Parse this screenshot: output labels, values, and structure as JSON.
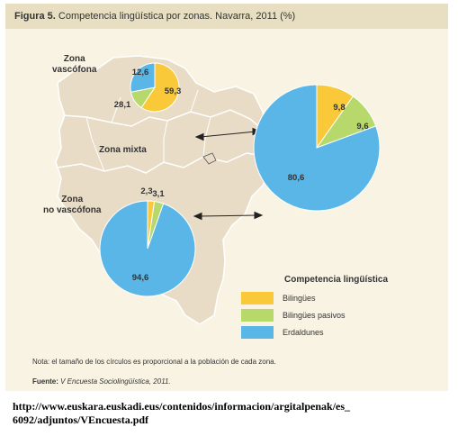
{
  "figure": {
    "title_prefix": "Figura 5.",
    "title_text": "Competencia lingüística por zonas. Navarra, 2011 (%)"
  },
  "zones": {
    "vascofona": [
      "Zona",
      "vascófona"
    ],
    "mixta": [
      "Zona mixta"
    ],
    "no_vascofona": [
      "Zona",
      "no vascófona"
    ]
  },
  "chart_data": {
    "type": "pie",
    "title": "Competencia lingüística por zonas. Navarra, 2011 (%)",
    "legend_title": "Competencia lingüística",
    "legend_position": "bottom-right",
    "categories": [
      "Bilingües",
      "Bilingües pasivos",
      "Erdaldunes"
    ],
    "colors": [
      "#f9c93a",
      "#b7d86a",
      "#5ab6e6"
    ],
    "pies": [
      {
        "name": "Zona vascófona",
        "values": [
          59.3,
          12.6,
          28.1
        ],
        "labels": [
          "59,3",
          "12,6",
          "28,1"
        ]
      },
      {
        "name": "Zona mixta",
        "values": [
          9.8,
          9.6,
          80.6
        ],
        "labels": [
          "9,8",
          "9,6",
          "80,6"
        ]
      },
      {
        "name": "Zona no vascófona",
        "values": [
          2.3,
          3.1,
          94.6
        ],
        "labels": [
          "2,3",
          "3,1",
          "94,6"
        ]
      }
    ]
  },
  "note": "Nota: el tamaño de los círculos es proporcional a la población de cada zona.",
  "source": {
    "label": "Fuente:",
    "text": "V Encuesta Sociolingüística, 2011."
  },
  "url": {
    "line1": "http://www.euskara.euskadi.eus/contenidos/informacion/argitalpenak/es_",
    "line2": "6092/adjuntos/VEncuesta.pdf"
  }
}
